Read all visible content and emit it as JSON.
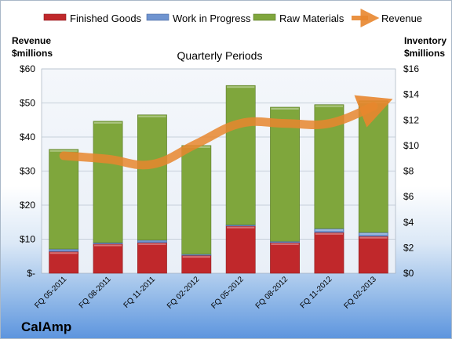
{
  "colors": {
    "finished": "#c0282b",
    "wip": "#6f94d0",
    "raw": "#7fa63c",
    "revenue": "#e8862e"
  },
  "chart_data": {
    "type": "bar",
    "subtype": "stacked-bar-with-line",
    "title": "Quarterly Periods",
    "company": "CalAmp",
    "left_axis": {
      "title_line1": "Revenue",
      "title_line2": "$millions",
      "range": [
        0,
        60
      ],
      "ticks": [
        "$-",
        "$10",
        "$20",
        "$30",
        "$40",
        "$50",
        "$60"
      ]
    },
    "right_axis": {
      "title_line1": "Inventory",
      "title_line2": "$millions",
      "range": [
        0,
        16
      ],
      "ticks": [
        "$0",
        "$2",
        "$4",
        "$6",
        "$8",
        "$10",
        "$12",
        "$14",
        "$16"
      ]
    },
    "categories": [
      "FQ 05-2011",
      "FQ 08-2011",
      "FQ 11-2011",
      "FQ 02-2012",
      "FQ 05-2012",
      "FQ 08-2012",
      "FQ 11-2012",
      "FQ 02-2013"
    ],
    "series": [
      {
        "name": "Finished Goods",
        "axis": "right",
        "values": [
          1.7,
          2.3,
          2.4,
          1.4,
          3.7,
          2.4,
          3.2,
          2.9
        ]
      },
      {
        "name": "Work in Progress",
        "axis": "right",
        "values": [
          0.2,
          0.1,
          0.2,
          0.1,
          0.1,
          0.1,
          0.3,
          0.3
        ]
      },
      {
        "name": "Raw Materials",
        "axis": "right",
        "values": [
          7.8,
          9.5,
          9.8,
          8.5,
          10.9,
          10.5,
          9.7,
          10.3
        ]
      },
      {
        "name": "Revenue",
        "axis": "left",
        "type": "line",
        "values": [
          34.5,
          33.5,
          32.0,
          38.0,
          44.0,
          44.0,
          44.0,
          49.0
        ]
      }
    ],
    "gridlines": true,
    "legend_position": "top"
  }
}
